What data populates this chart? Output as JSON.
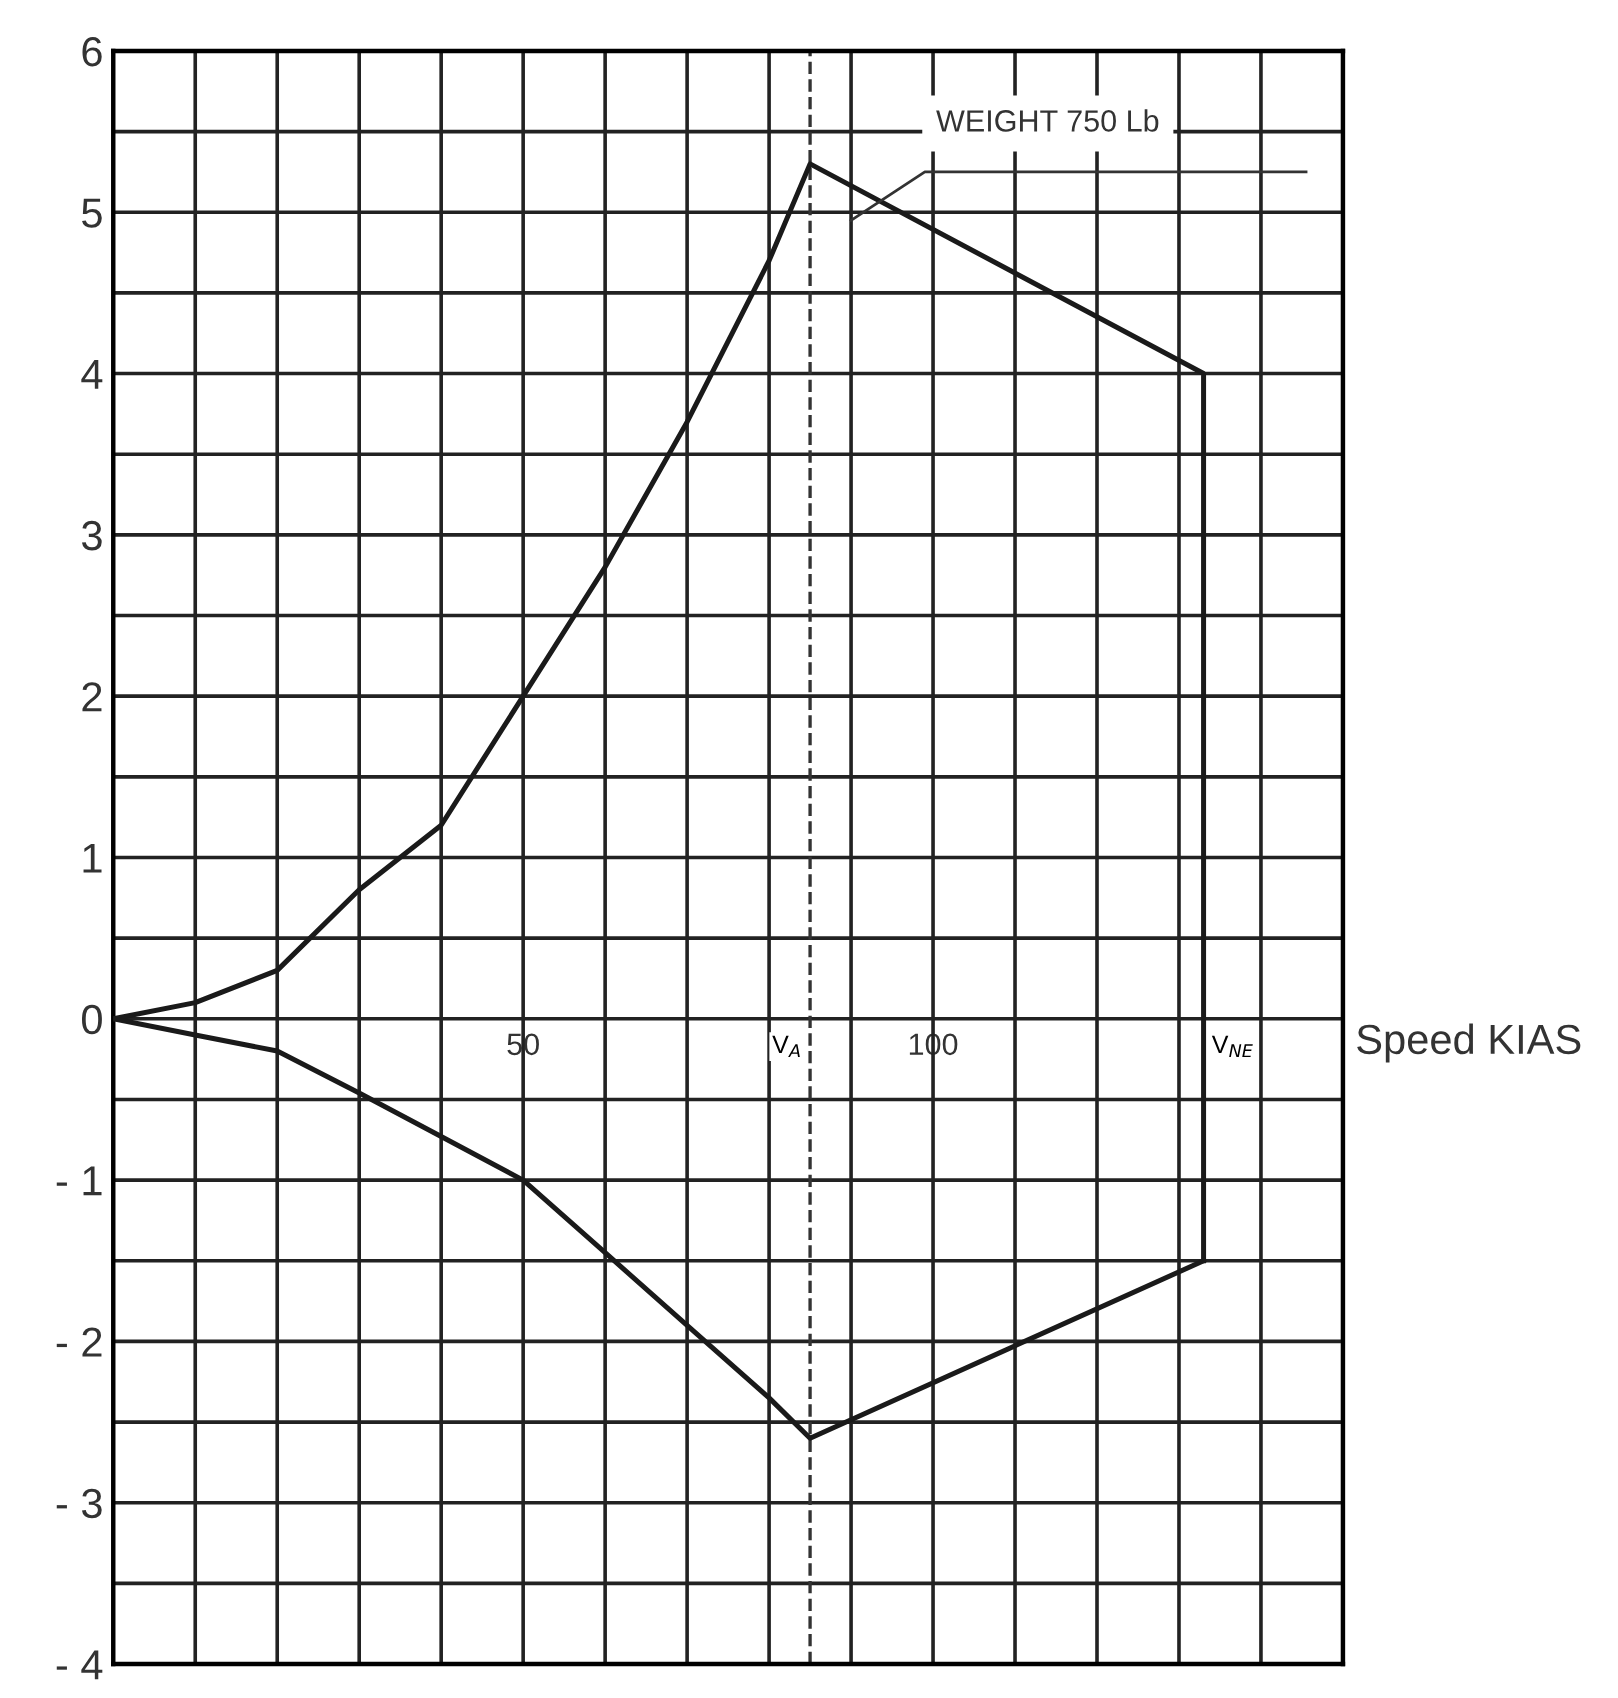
{
  "chart_data": {
    "type": "line",
    "xlabel": "Speed KIAS",
    "xlim": [
      0,
      150
    ],
    "ylim": [
      -4,
      6
    ],
    "xticks": [
      {
        "value": 10,
        "label": null
      },
      {
        "value": 20,
        "label": null
      },
      {
        "value": 30,
        "label": null
      },
      {
        "value": 40,
        "label": null
      },
      50,
      {
        "value": 60,
        "label": null
      },
      {
        "value": 70,
        "label": null
      },
      {
        "value": 80,
        "label": null
      },
      {
        "value": 90,
        "label": null
      },
      100,
      {
        "value": 110,
        "label": null
      },
      {
        "value": 120,
        "label": null
      },
      {
        "value": 130,
        "label": null
      },
      {
        "value": 140,
        "label": null
      }
    ],
    "yticks": [
      {
        "value": -4,
        "label": "- 4"
      },
      {
        "value": -3.5,
        "label": null
      },
      {
        "value": -3,
        "label": "- 3"
      },
      {
        "value": -2.5,
        "label": null
      },
      {
        "value": -2,
        "label": "- 2"
      },
      {
        "value": -1.5,
        "label": null
      },
      {
        "value": -1,
        "label": "- 1"
      },
      {
        "value": -0.5,
        "label": null
      },
      0,
      {
        "value": 0.5,
        "label": null
      },
      1,
      {
        "value": 1.5,
        "label": null
      },
      2,
      {
        "value": 2.5,
        "label": null
      },
      3,
      {
        "value": 3.5,
        "label": null
      },
      4,
      {
        "value": 4.5,
        "label": null
      },
      5,
      {
        "value": 5.5,
        "label": null
      },
      6
    ],
    "grid": true,
    "marker": "none",
    "line_style": "solid",
    "series": [
      {
        "color": "#1a1a1a",
        "x": [
          0,
          10,
          20,
          30,
          40,
          50,
          60,
          70,
          80,
          85,
          133,
          133
        ],
        "values": [
          0,
          0.1,
          0.3,
          0.8,
          1.2,
          2.0,
          2.8,
          3.7,
          4.7,
          5.3,
          4.0,
          -1.5
        ]
      },
      {
        "color": "#1a1a1a",
        "x": [
          0,
          10,
          20,
          30,
          40,
          50,
          60,
          70,
          80,
          85,
          133
        ],
        "values": [
          0,
          -0.1,
          -0.2,
          -0.46,
          -0.73,
          -1.0,
          -1.45,
          -1.9,
          -2.35,
          -2.6,
          -1.5
        ]
      }
    ],
    "ref_lines": [
      {
        "axis": "x",
        "value": 85,
        "label": "V$_{A}$",
        "line_style": "dashed",
        "color": "#333333"
      }
    ],
    "annotations": [
      "WEIGHT 750 Lb",
      {
        "text": "V$_{NE}$",
        "x": 133,
        "y": 0
      }
    ]
  }
}
